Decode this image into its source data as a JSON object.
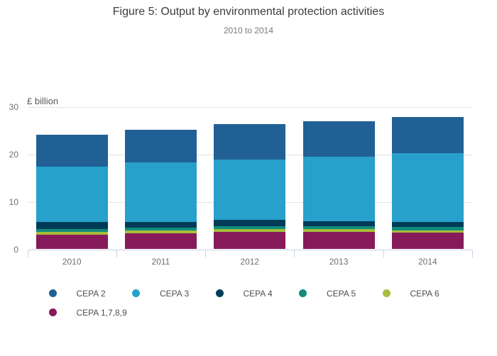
{
  "header": {
    "title": "Figure 5: Output by environmental protection activities",
    "subtitle": "2010 to 2014"
  },
  "chart_data": {
    "type": "bar",
    "stacked": true,
    "title": "Figure 5: Output by environmental protection activities",
    "subtitle": "2010 to 2014",
    "unit_label": "£ billion",
    "categories": [
      "2010",
      "2011",
      "2012",
      "2013",
      "2014"
    ],
    "series": [
      {
        "name": "CEPA 2",
        "color": "#206095",
        "values": [
          6.8,
          7.0,
          7.6,
          7.6,
          7.7
        ]
      },
      {
        "name": "CEPA 3",
        "color": "#27A0CC",
        "values": [
          11.7,
          12.55,
          12.7,
          13.6,
          14.5
        ]
      },
      {
        "name": "CEPA 4",
        "color": "#003C57",
        "values": [
          1.5,
          1.25,
          1.4,
          1.1,
          1.1
        ]
      },
      {
        "name": "CEPA 5",
        "color": "#118C7B",
        "values": [
          0.6,
          0.6,
          0.6,
          0.6,
          0.7
        ]
      },
      {
        "name": "CEPA 6",
        "color": "#A8BD3A",
        "values": [
          0.5,
          0.6,
          0.5,
          0.6,
          0.5
        ]
      },
      {
        "name": "CEPA 1,7,8,9",
        "color": "#871A5B",
        "values": [
          3.1,
          3.3,
          3.7,
          3.6,
          3.5
        ]
      }
    ],
    "totals": [
      24.2,
      25.3,
      26.5,
      27.1,
      28.0
    ],
    "y_axis": {
      "ticks": [
        0,
        10,
        20,
        30
      ],
      "min": 0,
      "max": 30
    },
    "stack_order": "reverse of legend order (CEPA 1,7,8,9 at bottom, CEPA 2 on top)",
    "grid": true,
    "legend_position": "bottom-left"
  }
}
